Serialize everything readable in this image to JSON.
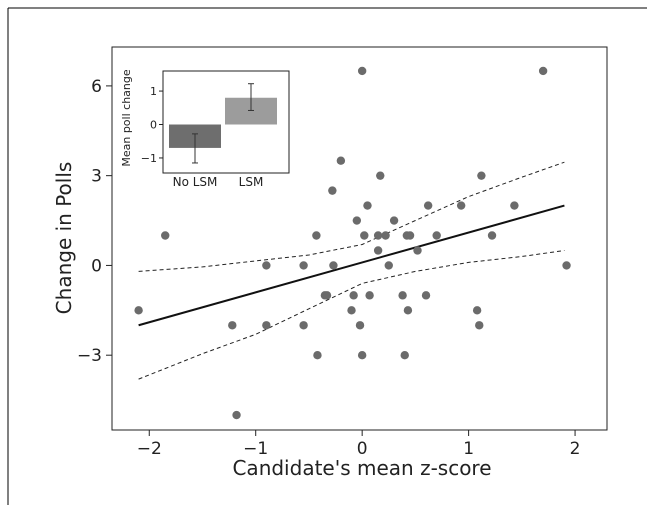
{
  "chart_data": [
    {
      "type": "scatter",
      "xlabel": "Candidate's mean z-score",
      "ylabel": "Change in Polls",
      "xlim": [
        -2.35,
        2.3
      ],
      "ylim": [
        -5.5,
        7.3
      ],
      "xticks": [
        -2,
        -1,
        0,
        1,
        2
      ],
      "xtick_labels": [
        "−2",
        "−1",
        "0",
        "1",
        "2"
      ],
      "yticks": [
        -3,
        0,
        3,
        6
      ],
      "ytick_labels": [
        "−3",
        "0",
        "3",
        "6"
      ],
      "grid": false,
      "points": {
        "x": [
          -2.1,
          -1.85,
          -1.22,
          -1.18,
          -0.9,
          -0.9,
          -0.55,
          -0.55,
          -0.43,
          -0.42,
          -0.35,
          -0.33,
          -0.28,
          -0.27,
          -0.2,
          -0.1,
          -0.08,
          -0.05,
          -0.02,
          0.0,
          0.0,
          0.02,
          0.05,
          0.07,
          0.15,
          0.15,
          0.17,
          0.22,
          0.25,
          0.3,
          0.38,
          0.4,
          0.42,
          0.43,
          0.45,
          0.52,
          0.6,
          0.62,
          0.7,
          0.93,
          1.08,
          1.1,
          1.12,
          1.22,
          1.43,
          1.7,
          1.92
        ],
        "y": [
          -1.5,
          1.0,
          -2.0,
          -5.0,
          0.0,
          -2.0,
          0.0,
          -2.0,
          1.0,
          -3.0,
          -1.0,
          -1.0,
          2.5,
          0.0,
          3.5,
          -1.5,
          -1.0,
          1.5,
          -2.0,
          -3.0,
          6.5,
          1.0,
          2.0,
          -1.0,
          0.5,
          1.0,
          3.0,
          1.0,
          0.0,
          1.5,
          -1.0,
          -3.0,
          1.0,
          -1.5,
          1.0,
          0.5,
          -1.0,
          2.0,
          1.0,
          2.0,
          -1.5,
          -2.0,
          3.0,
          1.0,
          2.0,
          6.5,
          0.0
        ],
        "color": "#6b6b6b"
      },
      "fit_line": {
        "x": [
          -2.1,
          1.9
        ],
        "y": [
          -2.0,
          2.0
        ],
        "color": "#111111"
      },
      "confidence_band": {
        "x": [
          -2.1,
          -1.5,
          -1.0,
          -0.5,
          0.0,
          0.5,
          1.0,
          1.5,
          1.9
        ],
        "upper": [
          -0.2,
          -0.05,
          0.15,
          0.35,
          0.7,
          1.5,
          2.3,
          2.95,
          3.45
        ],
        "lower": [
          -3.8,
          -2.95,
          -2.3,
          -1.45,
          -0.6,
          -0.2,
          0.1,
          0.3,
          0.5
        ]
      }
    },
    {
      "type": "bar",
      "categories": [
        "No LSM",
        "LSM"
      ],
      "values": [
        -0.7,
        0.8
      ],
      "errors": [
        [
          -1.15,
          -0.28
        ],
        [
          0.42,
          1.22
        ]
      ],
      "colors": [
        "#6e6e6e",
        "#9c9c9c"
      ],
      "ylabel": "Mean poll change",
      "ylim": [
        -1.45,
        1.6
      ],
      "yticks": [
        -1,
        0,
        1
      ],
      "ytick_labels": [
        "−1",
        "0",
        "1"
      ]
    }
  ]
}
